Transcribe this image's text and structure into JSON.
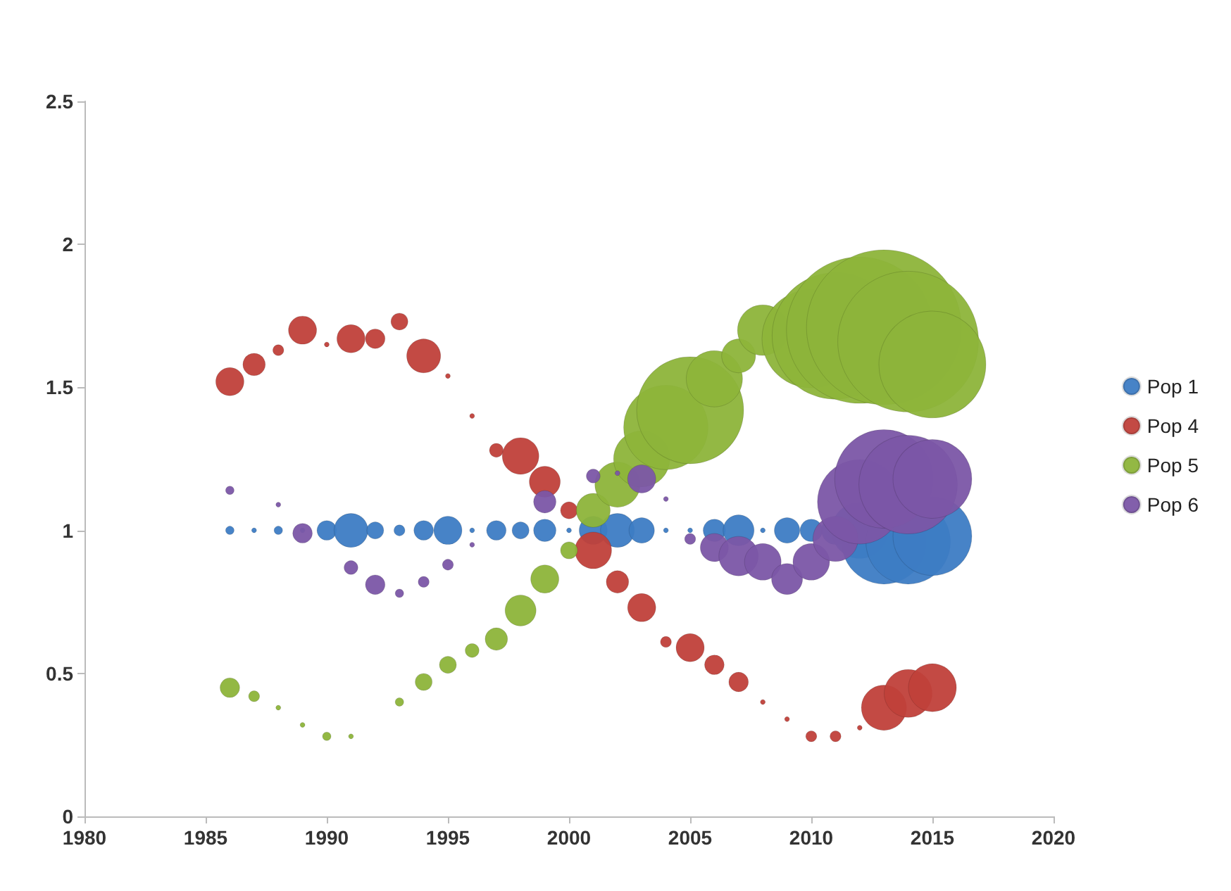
{
  "chart_data": {
    "type": "bubble",
    "xlim": [
      1980,
      2020
    ],
    "xticks": [
      1980,
      1985,
      1990,
      1995,
      2000,
      2005,
      2010,
      2015,
      2020
    ],
    "ylim": [
      0,
      2.5
    ],
    "yticks": [
      0,
      0.5,
      1,
      1.5,
      2,
      2.5
    ],
    "grid": false,
    "legend": "right",
    "series": [
      {
        "name": "Pop 1",
        "color": "#3d7cc4",
        "x": [
          1986,
          1987,
          1988,
          1989,
          1990,
          1991,
          1992,
          1993,
          1994,
          1995,
          1996,
          1997,
          1998,
          1999,
          2000,
          2001,
          2002,
          2003,
          2004,
          2005,
          2006,
          2007,
          2008,
          2009,
          2010,
          2011,
          2012,
          2013,
          2014,
          2015
        ],
        "values": [
          1,
          1,
          1,
          1,
          1,
          1,
          1,
          1,
          1,
          1,
          1,
          1,
          1,
          1,
          1,
          1,
          1,
          1,
          1,
          1,
          1,
          1,
          1,
          1,
          1,
          1,
          1,
          0.96,
          0.96,
          0.98
        ],
        "sizes": [
          0.003,
          0.001,
          0.003,
          0.001,
          0.016,
          0.048,
          0.012,
          0.005,
          0.016,
          0.033,
          0.001,
          0.016,
          0.012,
          0.021,
          0.001,
          0.033,
          0.048,
          0.027,
          0.001,
          0.001,
          0.021,
          0.04,
          0.001,
          0.027,
          0.021,
          0.033,
          0.132,
          0.298,
          0.298,
          0.259
        ]
      },
      {
        "name": "Pop 4",
        "color": "#c0403a",
        "x": [
          1986,
          1987,
          1988,
          1989,
          1990,
          1991,
          1992,
          1993,
          1994,
          1995,
          1996,
          1997,
          1998,
          1999,
          2000,
          2001,
          2002,
          2003,
          2004,
          2005,
          2006,
          2007,
          2008,
          2009,
          2010,
          2011,
          2012,
          2013,
          2014,
          2015
        ],
        "values": [
          1.52,
          1.58,
          1.63,
          1.7,
          1.65,
          1.67,
          1.67,
          1.73,
          1.61,
          1.54,
          1.4,
          1.28,
          1.26,
          1.17,
          1.07,
          0.93,
          0.82,
          0.73,
          0.61,
          0.59,
          0.53,
          0.47,
          0.4,
          0.34,
          0.28,
          0.28,
          0.31,
          0.38,
          0.43,
          0.45
        ],
        "sizes": [
          0.033,
          0.021,
          0.005,
          0.033,
          0.001,
          0.033,
          0.016,
          0.012,
          0.048,
          0.001,
          0.001,
          0.008,
          0.056,
          0.04,
          0.012,
          0.056,
          0.021,
          0.033,
          0.005,
          0.033,
          0.016,
          0.016,
          0.001,
          0.001,
          0.005,
          0.005,
          0.001,
          0.085,
          0.096,
          0.096
        ]
      },
      {
        "name": "Pop 5",
        "color": "#8db43a",
        "x": [
          1986,
          1987,
          1988,
          1989,
          1990,
          1991,
          1993,
          1994,
          1995,
          1996,
          1997,
          1998,
          1999,
          2000,
          2001,
          2002,
          2003,
          2004,
          2005,
          2006,
          2007,
          2008,
          2010,
          2011,
          2012,
          2013,
          2014,
          2015
        ],
        "values": [
          0.45,
          0.42,
          0.38,
          0.32,
          0.28,
          0.28,
          0.4,
          0.47,
          0.53,
          0.58,
          0.62,
          0.72,
          0.83,
          0.93,
          1.07,
          1.16,
          1.25,
          1.36,
          1.42,
          1.53,
          1.61,
          1.7,
          1.67,
          1.68,
          1.7,
          1.71,
          1.66,
          1.58
        ],
        "sizes": [
          0.016,
          0.005,
          0.001,
          0.001,
          0.003,
          0.001,
          0.003,
          0.012,
          0.012,
          0.008,
          0.021,
          0.04,
          0.033,
          0.012,
          0.048,
          0.085,
          0.132,
          0.298,
          0.477,
          0.132,
          0.048,
          0.107,
          0.405,
          0.669,
          0.894,
          1,
          0.826,
          0.477
        ]
      },
      {
        "name": "Pop 6",
        "color": "#7b56a6",
        "x": [
          1986,
          1988,
          1989,
          1991,
          1992,
          1993,
          1994,
          1995,
          1996,
          1999,
          2001,
          2002,
          2003,
          2004,
          2005,
          2006,
          2007,
          2008,
          2009,
          2010,
          2011,
          2012,
          2013,
          2014,
          2015
        ],
        "values": [
          1.14,
          1.09,
          0.99,
          0.87,
          0.81,
          0.78,
          0.82,
          0.88,
          0.95,
          1.1,
          1.19,
          1.2,
          1.18,
          1.11,
          0.97,
          0.94,
          0.91,
          0.89,
          0.83,
          0.89,
          0.97,
          1.1,
          1.18,
          1.16,
          1.18
        ],
        "sizes": [
          0.003,
          0.001,
          0.016,
          0.008,
          0.016,
          0.003,
          0.005,
          0.005,
          0.001,
          0.021,
          0.008,
          0.001,
          0.033,
          0.001,
          0.005,
          0.033,
          0.065,
          0.056,
          0.04,
          0.056,
          0.085,
          0.298,
          0.405,
          0.405,
          0.259
        ]
      }
    ]
  }
}
